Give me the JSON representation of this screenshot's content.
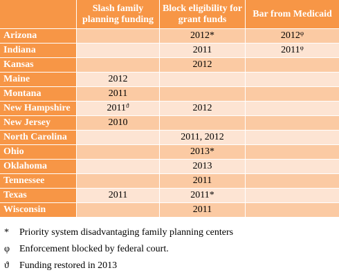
{
  "table": {
    "columns": [
      "",
      "Slash family planning funding",
      "Block eligibility for grant funds",
      "Bar from Medicaid"
    ],
    "rows": [
      {
        "state": "Arizona",
        "slash": "",
        "slash_mark": "",
        "block": "2012*",
        "block_mark": "",
        "bar": "2012",
        "bar_mark": "φ"
      },
      {
        "state": "Indiana",
        "slash": "",
        "slash_mark": "",
        "block": "2011",
        "block_mark": "",
        "bar": "2011",
        "bar_mark": "φ"
      },
      {
        "state": "Kansas",
        "slash": "",
        "slash_mark": "",
        "block": "2012",
        "block_mark": "",
        "bar": "",
        "bar_mark": ""
      },
      {
        "state": "Maine",
        "slash": "2012",
        "slash_mark": "",
        "block": "",
        "block_mark": "",
        "bar": "",
        "bar_mark": ""
      },
      {
        "state": "Montana",
        "slash": "2011",
        "slash_mark": "",
        "block": "",
        "block_mark": "",
        "bar": "",
        "bar_mark": ""
      },
      {
        "state": "New Hampshire",
        "slash": "2011",
        "slash_mark": "ϑ",
        "block": "2012",
        "block_mark": "",
        "bar": "",
        "bar_mark": ""
      },
      {
        "state": "New Jersey",
        "slash": "2010",
        "slash_mark": "",
        "block": "",
        "block_mark": "",
        "bar": "",
        "bar_mark": ""
      },
      {
        "state": "North Carolina",
        "slash": "",
        "slash_mark": "",
        "block": "2011, 2012",
        "block_mark": "",
        "bar": "",
        "bar_mark": ""
      },
      {
        "state": "Ohio",
        "slash": "",
        "slash_mark": "",
        "block": "2013*",
        "block_mark": "",
        "bar": "",
        "bar_mark": ""
      },
      {
        "state": "Oklahoma",
        "slash": "",
        "slash_mark": "",
        "block": "2013",
        "block_mark": "",
        "bar": "",
        "bar_mark": ""
      },
      {
        "state": "Tennessee",
        "slash": "",
        "slash_mark": "",
        "block": "2011",
        "block_mark": "",
        "bar": "",
        "bar_mark": ""
      },
      {
        "state": "Texas",
        "slash": "2011",
        "slash_mark": "",
        "block": "2011*",
        "block_mark": "",
        "bar": "",
        "bar_mark": ""
      },
      {
        "state": "Wisconsin",
        "slash": "",
        "slash_mark": "",
        "block": "2011",
        "block_mark": "",
        "bar": "",
        "bar_mark": ""
      }
    ]
  },
  "notes": [
    {
      "symbol": "*",
      "text": "Priority system disadvantaging family planning centers"
    },
    {
      "symbol": "φ",
      "text": "Enforcement blocked by federal court."
    },
    {
      "symbol": "ϑ",
      "text": "Funding restored in 2013"
    }
  ],
  "colors": {
    "header": "#f79646",
    "row_dark": "#fbcaa3",
    "row_light": "#fde4d3"
  }
}
